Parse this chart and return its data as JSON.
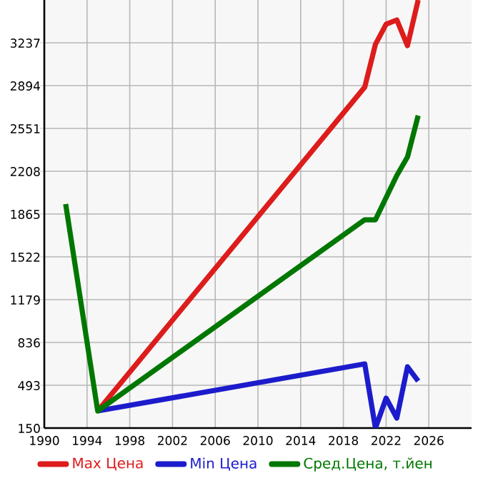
{
  "chart_data": {
    "type": "line",
    "xlim": [
      1990,
      2030
    ],
    "ylim": [
      150,
      3580
    ],
    "xticks": [
      1990,
      1994,
      1998,
      2002,
      2006,
      2010,
      2014,
      2018,
      2022,
      2026
    ],
    "yticks": [
      150,
      493,
      836,
      1179,
      1522,
      1865,
      2208,
      2551,
      2894,
      3237
    ],
    "grid": true,
    "legend": "bottom",
    "series": [
      {
        "name": "Max Цена",
        "color": "#dd1c1c",
        "x": [
          1995,
          2020,
          2021,
          2022,
          2023,
          2024,
          2025
        ],
        "values": [
          287,
          2882,
          3225,
          3386,
          3420,
          3214,
          3580
        ]
      },
      {
        "name": "Min Цена",
        "color": "#1c1ccc",
        "x": [
          1995,
          2020,
          2021,
          2022,
          2023,
          2024,
          2025
        ],
        "values": [
          287,
          664,
          150,
          390,
          230,
          641,
          527
        ]
      },
      {
        "name": "Сред.Цена, т.йен",
        "color": "#007700",
        "x": [
          1992,
          1995,
          2020,
          2021,
          2023,
          2024,
          2025
        ],
        "values": [
          1945,
          287,
          1819,
          1819,
          2174,
          2322,
          2654
        ]
      }
    ]
  }
}
